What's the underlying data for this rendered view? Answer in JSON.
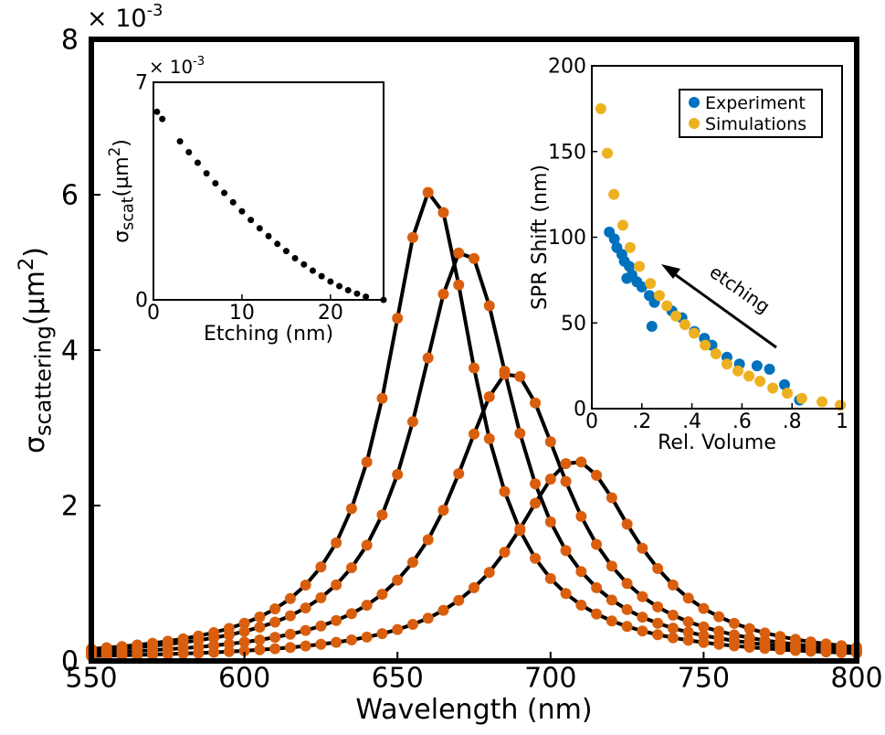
{
  "chart_data": [
    {
      "type": "line",
      "xlabel": "Wavelength (nm)",
      "ylabel": {
        "symbol": "σ",
        "subscript": "scattering",
        "unit": "(µm",
        "unit_power": "2",
        "close": ")"
      },
      "exponent": {
        "base": "× 10",
        "power": "-3"
      },
      "x": [
        550,
        555,
        560,
        565,
        570,
        575,
        580,
        585,
        590,
        595,
        600,
        605,
        610,
        615,
        620,
        625,
        630,
        635,
        640,
        645,
        650,
        655,
        660,
        665,
        670,
        675,
        680,
        685,
        690,
        695,
        700,
        705,
        710,
        715,
        720,
        725,
        730,
        735,
        740,
        745,
        750,
        755,
        760,
        765,
        770,
        775,
        780,
        785,
        790,
        795,
        800
      ],
      "xlim": [
        550,
        800
      ],
      "xticks": [
        550,
        600,
        650,
        700,
        750,
        800
      ],
      "ylim": [
        0,
        8
      ],
      "yticks": [
        0,
        2,
        4,
        6,
        8
      ],
      "grid": false,
      "series": [
        {
          "line_color": "#000000",
          "marker_color": "#d95f0e",
          "values": [
            0.155,
            0.17,
            0.186,
            0.206,
            0.228,
            0.254,
            0.285,
            0.321,
            0.365,
            0.419,
            0.485,
            0.566,
            0.67,
            0.803,
            0.977,
            1.21,
            1.52,
            1.96,
            2.56,
            3.38,
            4.41,
            5.45,
            6.03,
            5.77,
            4.84,
            3.77,
            2.86,
            2.18,
            1.68,
            1.32,
            1.06,
            0.867,
            0.719,
            0.605,
            0.515,
            0.444,
            0.386,
            0.338,
            0.299,
            0.266,
            0.238,
            0.214,
            0.194,
            0.176,
            0.161,
            0.147,
            0.135,
            0.125,
            0.116,
            0.107,
            0.1
          ]
        },
        {
          "line_color": "#000000",
          "marker_color": "#d95f0e",
          "values": [
            0.139,
            0.15,
            0.164,
            0.179,
            0.196,
            0.216,
            0.239,
            0.266,
            0.298,
            0.335,
            0.38,
            0.434,
            0.5,
            0.581,
            0.683,
            0.813,
            0.98,
            1.2,
            1.49,
            1.88,
            2.4,
            3.08,
            3.9,
            4.72,
            5.25,
            5.18,
            4.57,
            3.73,
            2.93,
            2.28,
            1.79,
            1.42,
            1.15,
            0.943,
            0.784,
            0.661,
            0.563,
            0.485,
            0.422,
            0.37,
            0.327,
            0.291,
            0.26,
            0.234,
            0.212,
            0.193,
            0.176,
            0.161,
            0.148,
            0.137,
            0.126
          ]
        },
        {
          "line_color": "#000000",
          "marker_color": "#d95f0e",
          "values": [
            0.102,
            0.11,
            0.118,
            0.128,
            0.138,
            0.151,
            0.164,
            0.18,
            0.198,
            0.219,
            0.243,
            0.271,
            0.305,
            0.344,
            0.392,
            0.45,
            0.521,
            0.609,
            0.718,
            0.859,
            1.04,
            1.27,
            1.56,
            1.94,
            2.41,
            2.92,
            3.4,
            3.69,
            3.66,
            3.32,
            2.82,
            2.31,
            1.86,
            1.5,
            1.22,
            0.997,
            0.828,
            0.695,
            0.59,
            0.505,
            0.438,
            0.382,
            0.336,
            0.298,
            0.265,
            0.238,
            0.214,
            0.194,
            0.177,
            0.161,
            0.148
          ]
        },
        {
          "line_color": "#000000",
          "marker_color": "#d95f0e",
          "values": [
            0.063,
            0.067,
            0.072,
            0.077,
            0.082,
            0.088,
            0.095,
            0.102,
            0.111,
            0.12,
            0.131,
            0.144,
            0.158,
            0.174,
            0.193,
            0.215,
            0.24,
            0.271,
            0.307,
            0.351,
            0.404,
            0.47,
            0.55,
            0.652,
            0.779,
            0.942,
            1.14,
            1.4,
            1.7,
            2.03,
            2.34,
            2.54,
            2.56,
            2.39,
            2.1,
            1.76,
            1.45,
            1.19,
            0.978,
            0.809,
            0.675,
            0.569,
            0.484,
            0.416,
            0.361,
            0.315,
            0.278,
            0.246,
            0.219,
            0.197,
            0.177
          ]
        }
      ]
    },
    {
      "type": "scatter",
      "xlabel": "Etching (nm)",
      "ylabel": {
        "symbol": "σ",
        "subscript": "scat",
        "unit": "(µm",
        "unit_power": "2",
        "close": ")"
      },
      "exponent": {
        "base": "× 10",
        "power": "-3"
      },
      "xlim": [
        0,
        26
      ],
      "xticks": [
        0,
        10,
        20
      ],
      "ylim": [
        0,
        7
      ],
      "yticks": [
        0,
        7
      ],
      "series": [
        {
          "color": "#000000",
          "x": [
            0.4,
            1,
            3,
            4,
            5,
            6,
            7,
            8,
            9,
            10,
            11,
            12,
            13,
            14,
            15,
            16,
            17,
            18,
            19,
            20,
            21,
            22,
            23,
            24,
            26
          ],
          "values": [
            6.05,
            5.82,
            5.1,
            4.75,
            4.41,
            4.07,
            3.75,
            3.44,
            3.14,
            2.85,
            2.57,
            2.3,
            2.05,
            1.8,
            1.57,
            1.34,
            1.14,
            0.94,
            0.76,
            0.59,
            0.44,
            0.31,
            0.2,
            0.1,
            0
          ]
        }
      ]
    },
    {
      "type": "scatter",
      "xlabel": "Rel. Volume",
      "ylabel": "SPR Shift (nm)",
      "annotation": "etching",
      "legend": "upper right",
      "xlim": [
        0,
        1
      ],
      "xticks": [
        0,
        {
          "value": 0.2,
          "label": ".2"
        },
        {
          "value": 0.4,
          "label": ".4"
        },
        {
          "value": 0.6,
          "label": ".6"
        },
        {
          "value": 0.8,
          "label": ".8"
        },
        1
      ],
      "ylim": [
        0,
        200
      ],
      "yticks": [
        0,
        50,
        100,
        150,
        200
      ],
      "series": [
        {
          "name": "Experiment",
          "color": "#0072bd",
          "x": [
            0.07,
            0.09,
            0.1,
            0.12,
            0.13,
            0.14,
            0.15,
            0.16,
            0.18,
            0.2,
            0.23,
            0.24,
            0.25,
            0.32,
            0.36,
            0.41,
            0.45,
            0.48,
            0.54,
            0.59,
            0.66,
            0.71,
            0.77,
            0.83
          ],
          "values": [
            103,
            99,
            94,
            90,
            86,
            76,
            83,
            78,
            74,
            71,
            66,
            48,
            62,
            57,
            53,
            45,
            41,
            37,
            30,
            26,
            25,
            23,
            14,
            5
          ]
        },
        {
          "name": "Simulations",
          "color": "#edb120",
          "x": [
            0.036,
            0.062,
            0.088,
            0.124,
            0.153,
            0.19,
            0.234,
            0.27,
            0.3,
            0.336,
            0.372,
            0.409,
            0.453,
            0.496,
            0.54,
            0.584,
            0.628,
            0.672,
            0.723,
            0.781,
            0.839,
            0.92,
            0.993
          ],
          "values": [
            175,
            149,
            125,
            107,
            94,
            83,
            73,
            66,
            60,
            54,
            49,
            44,
            37,
            32,
            26,
            22,
            19,
            16,
            12,
            9,
            6,
            4,
            2
          ]
        }
      ]
    }
  ]
}
